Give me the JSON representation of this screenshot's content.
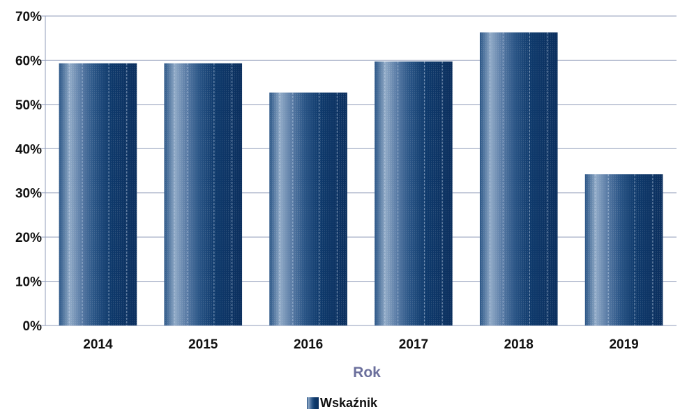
{
  "chart_data": {
    "type": "bar",
    "categories": [
      "2014",
      "2015",
      "2016",
      "2017",
      "2018",
      "2019"
    ],
    "series": [
      {
        "name": "Wskaźnik",
        "values": [
          0.593,
          0.593,
          0.527,
          0.597,
          0.663,
          0.342
        ]
      }
    ],
    "ylim": [
      0,
      0.7
    ],
    "yticks": [
      "0%",
      "10%",
      "20%",
      "30%",
      "40%",
      "50%",
      "60%",
      "70%"
    ],
    "xlabel": "Rok",
    "ylabel": "",
    "grid": true,
    "legend_position": "bottom"
  },
  "colors": {
    "bar_dark": "#0b2f5e",
    "bar_mid": "#2a5586",
    "bar_light": "#8fa9c6",
    "grid": "#8f9bb8",
    "axis_title": "#6b6f9c",
    "text": "#111111"
  }
}
